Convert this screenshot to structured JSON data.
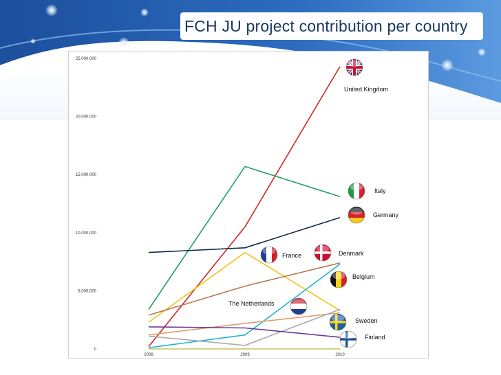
{
  "slide": {
    "title": "FCH JU project contribution per country"
  },
  "colors": {
    "title": "#17375e",
    "banner_blue": "#1c4f9c",
    "banner_light": "#4f8fd6"
  },
  "chart_data": {
    "type": "line",
    "title": "",
    "xlabel": "",
    "ylabel": "",
    "x": [
      "2008",
      "2009",
      "2010"
    ],
    "ylim": [
      0,
      25000000
    ],
    "yticks": [
      "0",
      "5,000,000",
      "10,000,000",
      "15,000,000",
      "20,000,000",
      "25,000,000"
    ],
    "grid": false,
    "series": [
      {
        "name": "United Kingdom",
        "color": "#d22727",
        "flag": "uk",
        "values": [
          200000,
          10500000,
          24300000
        ]
      },
      {
        "name": "Italy",
        "color": "#1fa05a",
        "flag": "italy",
        "values": [
          3400000,
          15700000,
          13100000
        ]
      },
      {
        "name": "Germany",
        "color": "#0f2a4a",
        "flag": "germany",
        "values": [
          8300000,
          8700000,
          11300000
        ]
      },
      {
        "name": "France",
        "color": "#f2c318",
        "flag": "france",
        "values": [
          2300000,
          8300000,
          3300000
        ]
      },
      {
        "name": "Denmark",
        "color": "#b9784a",
        "flag": "denmark",
        "values": [
          2900000,
          5400000,
          7400000
        ]
      },
      {
        "name": "Belgium",
        "color": "#1eb3d6",
        "flag": "belgium",
        "values": [
          100000,
          1200000,
          7300000
        ]
      },
      {
        "name": "The Netherlands",
        "color": "#e59a6a",
        "flag": "netherlands",
        "values": [
          1200000,
          2200000,
          3100000
        ]
      },
      {
        "name": "Sweden",
        "color": "#aaaaaa",
        "flag": "sweden",
        "values": [
          1100000,
          300000,
          3400000
        ]
      },
      {
        "name": "Finland",
        "color": "#6a3a96",
        "flag": "finland",
        "values": [
          1900000,
          1800000,
          1000000
        ]
      },
      {
        "name": "",
        "color": "#c7c25a",
        "flag": "",
        "values": [
          0,
          0,
          0
        ]
      }
    ]
  }
}
